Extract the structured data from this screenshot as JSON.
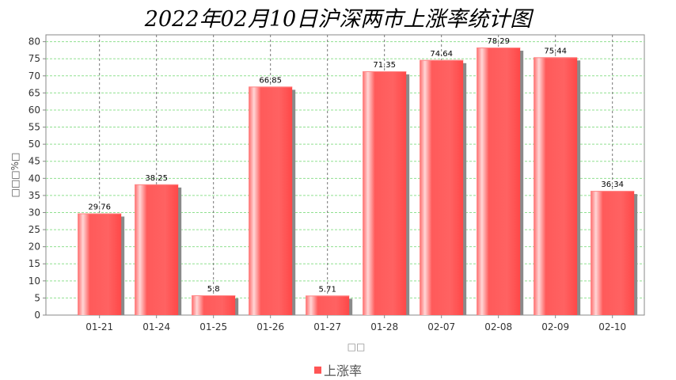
{
  "chart_data": {
    "type": "bar",
    "title": "2022年02月10日沪深两市上涨率统计图",
    "xlabel": "□□",
    "ylabel": "□□□%□",
    "categories": [
      "01-21",
      "01-24",
      "01-25",
      "01-26",
      "01-27",
      "01-28",
      "02-07",
      "02-08",
      "02-09",
      "02-10"
    ],
    "series": [
      {
        "name": "上涨率",
        "values": [
          29.76,
          38.25,
          5.8,
          66.85,
          5.71,
          71.35,
          74.64,
          78.29,
          75.44,
          36.34
        ]
      }
    ],
    "ylim": [
      0,
      82
    ],
    "yticks": [
      0,
      5,
      10,
      15,
      20,
      25,
      30,
      35,
      40,
      45,
      50,
      55,
      60,
      65,
      70,
      75,
      80
    ],
    "grid": true,
    "legend_position": "bottom-center",
    "bar_color": "#ff5555"
  }
}
